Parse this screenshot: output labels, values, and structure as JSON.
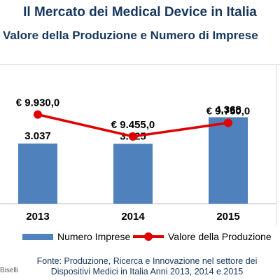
{
  "title": "Il Mercato dei Medical Device in Italia",
  "subtitle": "Valore della Produzione e Numero di Imprese",
  "chart_data": {
    "type": "bar+line",
    "categories": [
      "2013",
      "2014",
      "2015"
    ],
    "bar_series": {
      "name": "Numero Imprese",
      "values": [
        3037,
        3025,
        4368
      ],
      "labels": [
        "3.037",
        "3.025",
        "4.368"
      ],
      "color": "#4f81bd"
    },
    "line_series": {
      "name": "Valore della Produzione",
      "values": [
        9930.0,
        9455.0,
        9750.0
      ],
      "labels": [
        "€ 9.930,0",
        "€ 9.455,0",
        "€ 9.750,0"
      ],
      "color": "#e00000"
    },
    "bar_ylim": [
      0,
      7000
    ],
    "line_ylim": [
      8000,
      11000
    ],
    "legend_position": "bottom"
  },
  "source_text": "Fonte: Produzione, Ricerca e Innovazione nel settore dei Dispositivi Medici in Italia  Anni 2013, 2014 e 2015",
  "author_fragment": "Biselli"
}
